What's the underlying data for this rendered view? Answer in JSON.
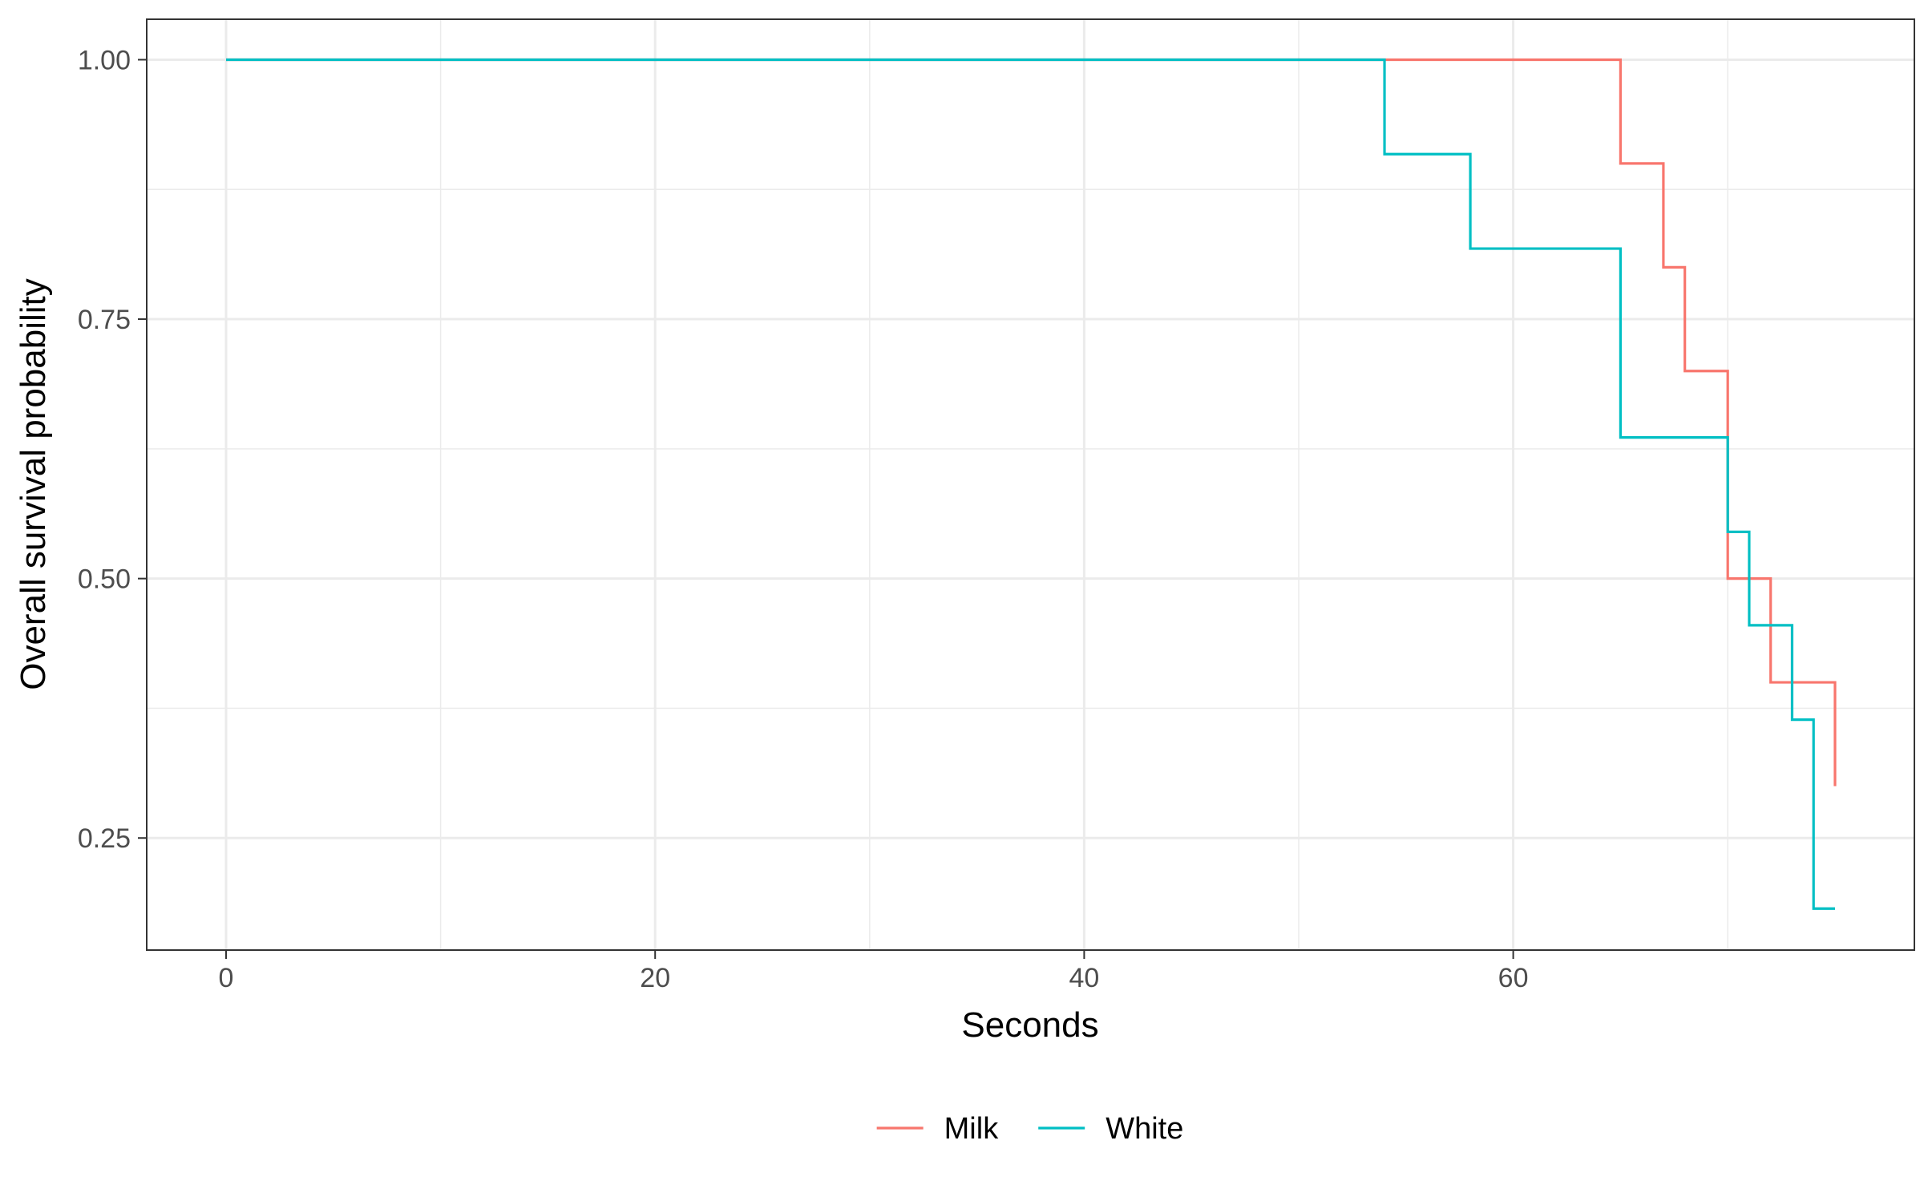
{
  "chart_data": {
    "type": "line",
    "step": true,
    "title": "",
    "xlabel": "Seconds",
    "ylabel": "Overall survival probability",
    "xlim": [
      -3.7,
      78.7
    ],
    "ylim": [
      0.142,
      1.039
    ],
    "x_ticks": [
      0,
      20,
      40,
      60
    ],
    "x_tick_labels": [
      "0",
      "20",
      "40",
      "60"
    ],
    "x_minor_ticks": [
      10,
      30,
      50,
      70
    ],
    "y_ticks": [
      0.25,
      0.5,
      0.75,
      1.0
    ],
    "y_tick_labels": [
      "0.25",
      "0.50",
      "0.75",
      "1.00"
    ],
    "y_minor_ticks": [
      0.375,
      0.625,
      0.875
    ],
    "grid": true,
    "legend_position": "bottom",
    "series": [
      {
        "name": "Milk",
        "color": "#F8766D",
        "x": [
          0,
          65,
          67,
          68,
          70,
          72,
          75
        ],
        "y": [
          1.0,
          0.9,
          0.8,
          0.7,
          0.5,
          0.4,
          0.3
        ]
      },
      {
        "name": "White",
        "color": "#00BFC4",
        "x": [
          0,
          54,
          58,
          65,
          70,
          71,
          73,
          74,
          75
        ],
        "y": [
          1.0,
          0.909,
          0.818,
          0.636,
          0.545,
          0.455,
          0.364,
          0.182,
          0.182
        ]
      }
    ]
  }
}
